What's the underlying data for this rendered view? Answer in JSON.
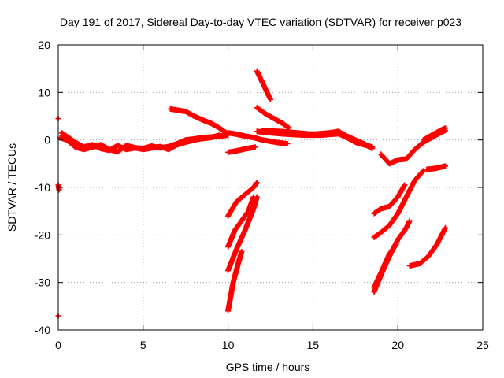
{
  "chart_data": {
    "type": "scatter",
    "title": "Day 191 of 2017, Sidereal Day-to-day VTEC variation (SDTVAR) for receiver p023",
    "xlabel": "GPS time / hours",
    "ylabel": "SDTVAR / TECUs",
    "xlim": [
      0,
      25
    ],
    "ylim": [
      -40,
      20
    ],
    "xticks": [
      "0",
      "5",
      "10",
      "15",
      "20",
      "25"
    ],
    "yticks": [
      "-40",
      "-30",
      "-20",
      "-10",
      "0",
      "10",
      "20"
    ],
    "grid": true,
    "marker": "plus",
    "series_color": "#ff0000",
    "segments": [
      [
        [
          0.0,
          4.5
        ]
      ],
      [
        [
          0.0,
          -9.5
        ],
        [
          0.05,
          -10.5
        ]
      ],
      [
        [
          0.0,
          -37.0
        ]
      ],
      [
        [
          0.2,
          1.5
        ],
        [
          0.6,
          0.5
        ],
        [
          1.0,
          -0.5
        ],
        [
          1.5,
          -1.5
        ],
        [
          2.0,
          -1.0
        ],
        [
          2.5,
          -1.8
        ],
        [
          3.0,
          -2.2
        ],
        [
          3.5,
          -1.2
        ],
        [
          4.0,
          -2.0
        ],
        [
          4.5,
          -1.7
        ],
        [
          5.0,
          -1.8
        ],
        [
          5.5,
          -1.3
        ],
        [
          6.0,
          -1.7
        ],
        [
          6.5,
          -1.4
        ],
        [
          7.0,
          -0.8
        ],
        [
          7.5,
          0.0
        ],
        [
          8.0,
          0.2
        ],
        [
          8.5,
          0.5
        ],
        [
          9.0,
          0.6
        ],
        [
          9.5,
          0.8
        ],
        [
          10.0,
          1.0
        ]
      ],
      [
        [
          0.1,
          0.5
        ],
        [
          0.5,
          0.0
        ],
        [
          1.0,
          -1.5
        ],
        [
          1.5,
          -2.0
        ],
        [
          2.0,
          -1.5
        ],
        [
          2.5,
          -1.0
        ],
        [
          3.0,
          -2.0
        ],
        [
          3.5,
          -2.5
        ],
        [
          4.0,
          -1.2
        ],
        [
          4.5,
          -1.6
        ],
        [
          5.0,
          -2.0
        ],
        [
          5.5,
          -1.7
        ],
        [
          6.0,
          -1.4
        ],
        [
          6.5,
          -2.0
        ],
        [
          7.0,
          -1.0
        ],
        [
          7.5,
          -0.5
        ],
        [
          8.0,
          0.0
        ],
        [
          8.5,
          0.3
        ],
        [
          9.0,
          0.5
        ],
        [
          9.5,
          1.0
        ]
      ],
      [
        [
          6.6,
          6.5
        ],
        [
          7.5,
          6.0
        ],
        [
          8.0,
          5.0
        ],
        [
          8.5,
          4.2
        ],
        [
          9.0,
          3.5
        ],
        [
          9.5,
          2.5
        ],
        [
          9.9,
          1.5
        ]
      ],
      [
        [
          10.0,
          -2.6
        ],
        [
          10.5,
          -2.3
        ],
        [
          11.0,
          -1.9
        ],
        [
          11.6,
          -1.5
        ]
      ],
      [
        [
          10.0,
          1.5
        ],
        [
          10.5,
          1.2
        ],
        [
          11.0,
          0.8
        ],
        [
          11.5,
          0.5
        ],
        [
          12.0,
          0.0
        ],
        [
          12.5,
          -0.3
        ],
        [
          13.0,
          -0.6
        ],
        [
          13.5,
          -0.8
        ]
      ],
      [
        [
          11.7,
          6.8
        ],
        [
          12.2,
          5.5
        ],
        [
          12.7,
          4.5
        ],
        [
          13.2,
          3.5
        ],
        [
          13.6,
          2.5
        ]
      ],
      [
        [
          11.7,
          14.5
        ],
        [
          12.1,
          11.5
        ],
        [
          12.5,
          8.5
        ]
      ],
      [
        [
          11.7,
          1.8
        ],
        [
          12.5,
          1.5
        ],
        [
          13.5,
          1.2
        ],
        [
          14.5,
          1.0
        ],
        [
          15.5,
          1.0
        ],
        [
          16.5,
          1.3
        ],
        [
          17.0,
          0.5
        ],
        [
          17.5,
          -0.5
        ],
        [
          18.0,
          -1.0
        ],
        [
          18.5,
          -1.5
        ]
      ],
      [
        [
          12.0,
          2.0
        ],
        [
          13.0,
          1.8
        ],
        [
          14.0,
          1.5
        ],
        [
          15.0,
          1.2
        ],
        [
          16.0,
          1.5
        ],
        [
          16.5,
          1.8
        ],
        [
          17.0,
          0.8
        ],
        [
          17.5,
          0.0
        ],
        [
          18.0,
          -0.8
        ],
        [
          18.5,
          -1.8
        ]
      ],
      [
        [
          10.0,
          -16.0
        ],
        [
          10.5,
          -13.0
        ],
        [
          11.0,
          -11.5
        ],
        [
          11.5,
          -10.0
        ],
        [
          11.7,
          -9.0
        ]
      ],
      [
        [
          10.0,
          -22.5
        ],
        [
          10.4,
          -19.0
        ],
        [
          10.8,
          -17.0
        ],
        [
          11.2,
          -15.0
        ],
        [
          11.5,
          -12.0
        ]
      ],
      [
        [
          10.0,
          -27.5
        ],
        [
          10.5,
          -23.0
        ],
        [
          11.0,
          -19.0
        ],
        [
          11.5,
          -14.5
        ],
        [
          11.7,
          -12.0
        ]
      ],
      [
        [
          10.0,
          -36.0
        ],
        [
          10.3,
          -30.0
        ],
        [
          10.6,
          -26.0
        ],
        [
          10.8,
          -23.5
        ]
      ],
      [
        [
          19.0,
          -3.0
        ],
        [
          19.5,
          -5.0
        ],
        [
          20.0,
          -4.2
        ],
        [
          20.5,
          -4.0
        ],
        [
          21.0,
          -2.0
        ],
        [
          21.5,
          -0.5
        ],
        [
          22.0,
          0.5
        ],
        [
          22.5,
          1.5
        ],
        [
          22.8,
          2.0
        ]
      ],
      [
        [
          21.5,
          0.0
        ],
        [
          22.0,
          1.0
        ],
        [
          22.5,
          2.0
        ],
        [
          22.8,
          2.5
        ]
      ],
      [
        [
          21.7,
          -6.2
        ],
        [
          22.2,
          -6.0
        ],
        [
          22.8,
          -5.5
        ]
      ],
      [
        [
          18.6,
          -15.5
        ],
        [
          19.0,
          -14.5
        ],
        [
          19.5,
          -14.0
        ],
        [
          20.0,
          -12.0
        ],
        [
          20.4,
          -9.5
        ]
      ],
      [
        [
          18.6,
          -20.5
        ],
        [
          19.0,
          -19.5
        ],
        [
          19.5,
          -18.0
        ],
        [
          20.0,
          -15.5
        ],
        [
          20.5,
          -12.0
        ],
        [
          21.0,
          -8.5
        ],
        [
          21.5,
          -6.5
        ]
      ],
      [
        [
          18.6,
          -32.0
        ],
        [
          19.0,
          -28.5
        ],
        [
          19.5,
          -24.5
        ],
        [
          20.0,
          -21.0
        ],
        [
          20.5,
          -18.5
        ],
        [
          20.7,
          -17.0
        ]
      ],
      [
        [
          18.6,
          -31.0
        ],
        [
          19.0,
          -28.0
        ],
        [
          19.5,
          -24.0
        ],
        [
          19.9,
          -22.0
        ]
      ],
      [
        [
          20.7,
          -26.5
        ],
        [
          21.3,
          -26.0
        ],
        [
          21.8,
          -24.5
        ],
        [
          22.3,
          -22.0
        ],
        [
          22.8,
          -18.5
        ]
      ]
    ]
  }
}
